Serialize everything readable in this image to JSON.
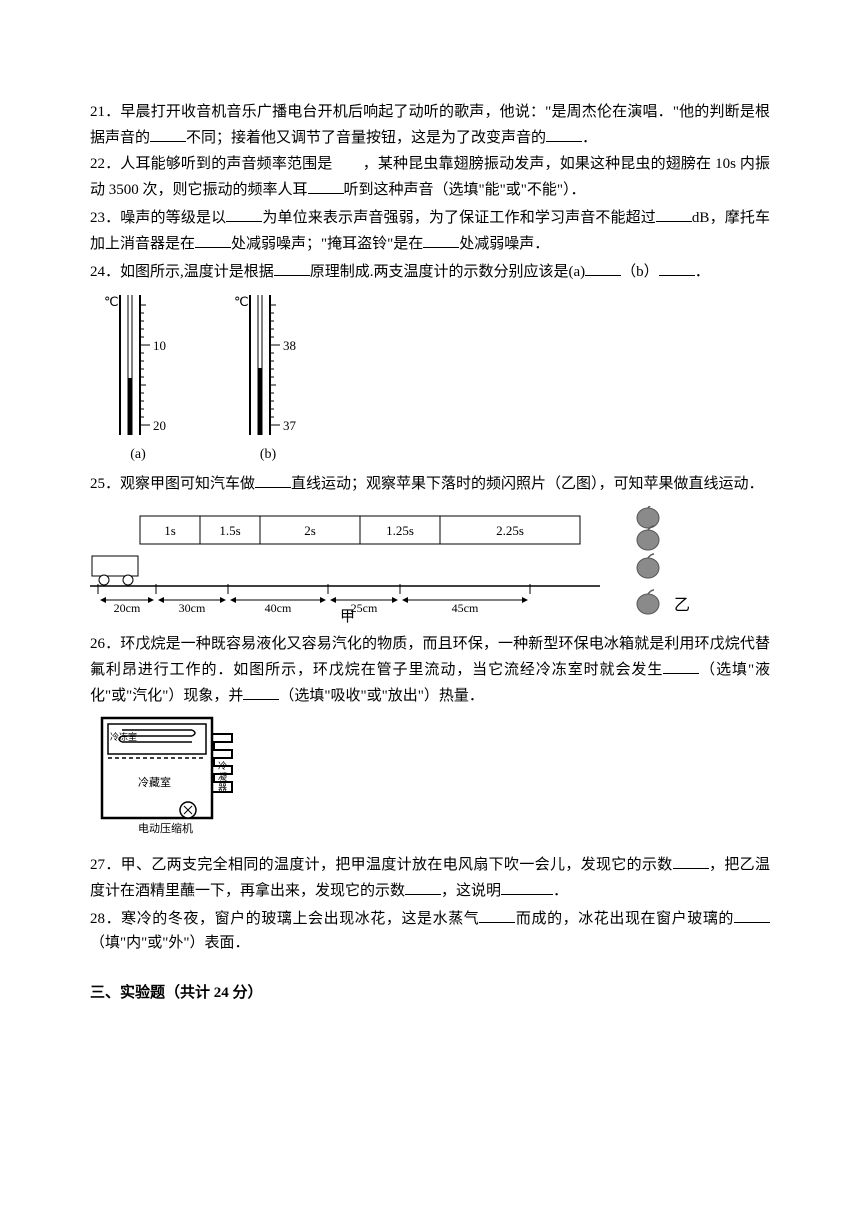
{
  "q21": {
    "text_a": "21．早晨打开收音机音乐广播电台开机后响起了动听的歌声，他说：\"是周杰伦在演唱．\"他的判断是根据声音的",
    "text_b": "不同；接着他又调节了音量按钮，这是为了改变声音的",
    "text_c": "．"
  },
  "q22": {
    "text_a": "22．人耳能够听到的声音频率范围是　　，某种昆虫靠翅膀振动发声，如果这种昆虫的翅膀在 10s 内振动 3500 次，则它振动的频率人耳",
    "text_b": "听到这种声音（选填\"能\"或\"不能\"）．"
  },
  "q23": {
    "text_a": "23．噪声的等级是以",
    "text_b": "为单位来表示声音强弱，为了保证工作和学习声音不能超过",
    "text_c": "dB，摩托车加上消音器是在",
    "text_d": "处减弱噪声；\"掩耳盗铃\"是在",
    "text_e": "处减弱噪声．"
  },
  "q24": {
    "text_a": "24．如图所示,温度计是根据",
    "text_b": "原理制成.两支温度计的示数分别应该是(a)",
    "text_c": "（b）",
    "text_d": "．",
    "thermo": {
      "a": {
        "unit": "℃",
        "top_tick": "10",
        "bottom_tick": "20",
        "label": "(a)"
      },
      "b": {
        "unit": "℃",
        "top_tick": "38",
        "bottom_tick": "37",
        "label": "(b)"
      }
    }
  },
  "q25": {
    "text_a": "25．观察甲图可知汽车做",
    "text_b": "直线运动；观察苹果下落时的频闪照片（乙图），可知苹果做直线运动．",
    "times": [
      "1s",
      "1.5s",
      "2s",
      "1.25s",
      "2.25s"
    ],
    "dists": [
      "20cm",
      "30cm",
      "40cm",
      "25cm",
      "45cm"
    ],
    "caption_left": "甲",
    "caption_right": "乙",
    "colors": {
      "apple_fill": "#8a8a8a",
      "apple_stem": "#5a5a5a",
      "line": "#000000"
    }
  },
  "q26": {
    "text_a": "26．环戊烷是一种既容易液化又容易汽化的物质，而且环保，一种新型环保电冰箱就是利用环戊烷代替氟利昂进行工作的．如图所示，环戊烷在管子里流动，当它流经冷冻室时就会发生",
    "text_b": "（选填\"液化\"或\"汽化\"）现象，并",
    "text_c": "（选填\"吸收\"或\"放出\"）热量．",
    "labels": {
      "freezer": "冷冻室",
      "fridge": "冷藏室",
      "condenser": "冷凝器",
      "compressor": "电动压缩机"
    }
  },
  "q27": {
    "text_a": "27．甲、乙两支完全相同的温度计，把甲温度计放在电风扇下吹一会儿，发现它的示数",
    "text_b": "，把乙温度计在酒精里蘸一下，再拿出来，发现它的示数",
    "text_c": "，这说明",
    "text_d": "．"
  },
  "q28": {
    "text_a": "28．寒冷的冬夜，窗户的玻璃上会出现冰花，这是水蒸气",
    "text_b": "而成的，冰花出现在窗户玻璃的",
    "text_c": "（填\"内\"或\"外\"）表面．"
  },
  "section3": "三、实验题（共计 24 分）"
}
